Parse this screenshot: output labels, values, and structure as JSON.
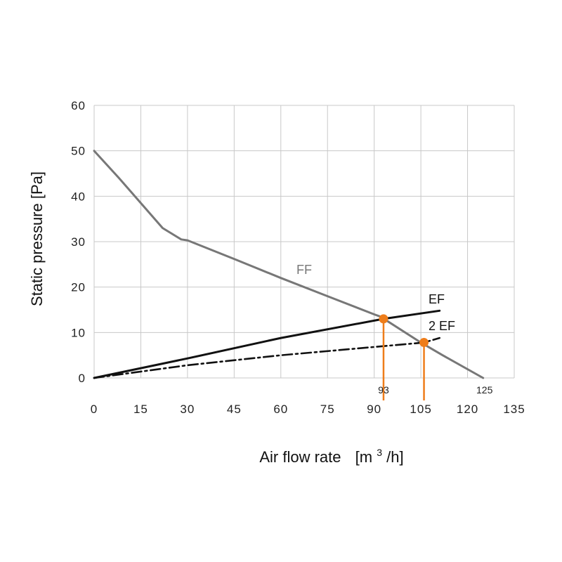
{
  "chart_data": {
    "type": "line",
    "xlabel": "Air flow rate",
    "xunit_prefix": "[m",
    "xunit_sup": "3",
    "xunit_suffix": "/h]",
    "ylabel": "Static pressure  [Pa]",
    "xlim": [
      0,
      135
    ],
    "ylim": [
      0,
      60
    ],
    "x_ticks": [
      0,
      15,
      30,
      45,
      60,
      75,
      90,
      105,
      120,
      135
    ],
    "y_ticks": [
      0,
      10,
      20,
      30,
      40,
      50,
      60
    ],
    "grid": true,
    "series": [
      {
        "name": "FF",
        "style": "solid",
        "color": "#777777",
        "x": [
          0,
          8,
          15,
          22,
          28,
          30,
          45,
          60,
          75,
          90,
          92,
          105,
          112,
          125
        ],
        "y": [
          50,
          44,
          38.5,
          33,
          30.5,
          30.3,
          26.2,
          22,
          18,
          14,
          13.5,
          7.8,
          5,
          0
        ]
      },
      {
        "name": "EF",
        "style": "solid",
        "color": "#111111",
        "x": [
          0,
          30,
          60,
          93,
          111
        ],
        "y": [
          0,
          4.3,
          8.8,
          13,
          14.8
        ]
      },
      {
        "name": "2 EF",
        "style": "dash-dot",
        "color": "#111111",
        "x": [
          0,
          30,
          60,
          106,
          111
        ],
        "y": [
          0,
          2.8,
          5,
          7.8,
          8.8
        ]
      }
    ],
    "operating_points": [
      {
        "x": 93,
        "y": 13,
        "label": "93",
        "color": "#ee7d1a"
      },
      {
        "x": 106,
        "y": 7.8,
        "label": "",
        "color": "#ee7d1a"
      }
    ],
    "annotations": [
      {
        "x": 125,
        "label": "125"
      }
    ]
  }
}
